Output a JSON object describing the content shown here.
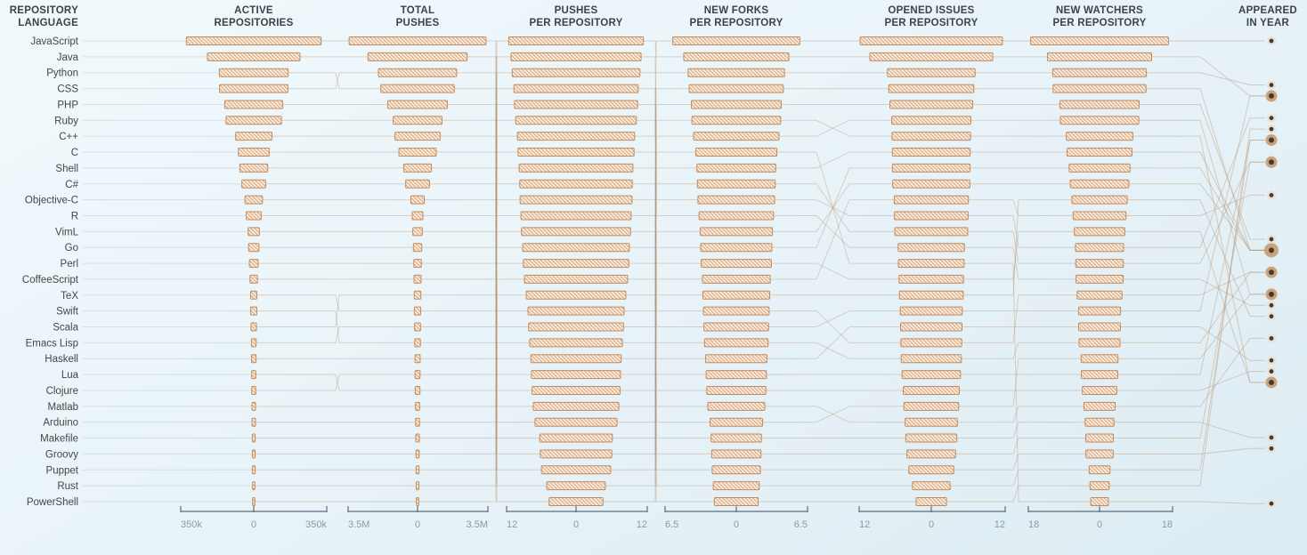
{
  "title_column": {
    "line1": "REPOSITORY",
    "line2": "LANGUAGE"
  },
  "columns": [
    {
      "id": "active_repositories",
      "title1": "ACTIVE",
      "title2": "REPOSITORIES",
      "ticks": [
        "350k",
        "0",
        "350k"
      ],
      "axis_max": 350000
    },
    {
      "id": "total_pushes",
      "title1": "TOTAL",
      "title2": "PUSHES",
      "ticks": [
        "3.5M",
        "0",
        "3.5M"
      ],
      "axis_max": 3500000
    },
    {
      "id": "pushes_per_repository",
      "title1": "PUSHES",
      "title2": "PER REPOSITORY",
      "ticks": [
        "12",
        "0",
        "12"
      ],
      "axis_max": 12
    },
    {
      "id": "new_forks_per_repository",
      "title1": "NEW FORKS",
      "title2": "PER REPOSITORY",
      "ticks": [
        "6.5",
        "0",
        "6.5"
      ],
      "axis_max": 6.5
    },
    {
      "id": "opened_issues_per_repository",
      "title1": "OPENED ISSUES",
      "title2": "PER REPOSITORY",
      "ticks": [
        "12",
        "0",
        "12"
      ],
      "axis_max": 12
    },
    {
      "id": "new_watchers_per_repository",
      "title1": "NEW WATCHERS",
      "title2": "PER REPOSITORY",
      "ticks": [
        "18",
        "0",
        "18"
      ],
      "axis_max": 18
    }
  ],
  "year_column": {
    "title1": "APPEARED",
    "title2": "IN YEAR",
    "top_year": 2014,
    "bottom_year": 1972
  },
  "languages": [
    {
      "name": "JavaScript",
      "active_repositories": 323000,
      "total_pushes": 3450000,
      "pushes_per_repository": 5.0,
      "new_forks_per_repository": 4.3,
      "opened_issues_per_repository": 7.0,
      "new_watchers_per_repository": 11.6,
      "appeared_in_year": 1995
    },
    {
      "name": "Java",
      "active_repositories": 222000,
      "total_pushes": 2500000,
      "pushes_per_repository": 6.1,
      "new_forks_per_repository": 3.6,
      "opened_issues_per_repository": 6.4,
      "new_watchers_per_repository": 8.1,
      "appeared_in_year": 1995
    },
    {
      "name": "Python",
      "active_repositories": 165000,
      "total_pushes": 1850000,
      "pushes_per_repository": 7.0,
      "new_forks_per_repository": 3.9,
      "opened_issues_per_repository": 6.5,
      "new_watchers_per_repository": 9.8,
      "appeared_in_year": 1991
    },
    {
      "name": "CSS",
      "active_repositories": 164000,
      "total_pushes": 1970000,
      "pushes_per_repository": 4.6,
      "new_forks_per_repository": 4.1,
      "opened_issues_per_repository": 6.8,
      "new_watchers_per_repository": 9.9,
      "appeared_in_year": 1996
    },
    {
      "name": "PHP",
      "active_repositories": 139000,
      "total_pushes": 1500000,
      "pushes_per_repository": 5.9,
      "new_forks_per_repository": 3.25,
      "opened_issues_per_repository": 6.38,
      "new_watchers_per_repository": 7.6,
      "appeared_in_year": 1995
    },
    {
      "name": "Ruby",
      "active_repositories": 133000,
      "total_pushes": 1230000,
      "pushes_per_repository": 6.2,
      "new_forks_per_repository": 3.3,
      "opened_issues_per_repository": 6.35,
      "new_watchers_per_repository": 7.3,
      "appeared_in_year": 1995
    },
    {
      "name": "C++",
      "active_repositories": 87000,
      "total_pushes": 1140000,
      "pushes_per_repository": 8.1,
      "new_forks_per_repository": 4.05,
      "opened_issues_per_repository": 6.45,
      "new_watchers_per_repository": 8.3,
      "appeared_in_year": 1983
    },
    {
      "name": "C",
      "active_repositories": 74000,
      "total_pushes": 940000,
      "pushes_per_repository": 8.2,
      "new_forks_per_repository": 3.7,
      "opened_issues_per_repository": 5.4,
      "new_watchers_per_repository": 2.2,
      "appeared_in_year": 1972
    },
    {
      "name": "Shell",
      "active_repositories": 67000,
      "total_pushes": 700000,
      "pushes_per_repository": 7.6,
      "new_forks_per_repository": 3.05,
      "opened_issues_per_repository": 5.25,
      "new_watchers_per_repository": 6.9,
      "appeared_in_year": 1989
    },
    {
      "name": "C#",
      "active_repositories": 57000,
      "total_pushes": 600000,
      "pushes_per_repository": 7.5,
      "new_forks_per_repository": 3.1,
      "opened_issues_per_repository": 6.1,
      "new_watchers_per_repository": 6.6,
      "appeared_in_year": 2000
    },
    {
      "name": "Objective-C",
      "active_repositories": 42000,
      "total_pushes": 340000,
      "pushes_per_repository": 7.3,
      "new_forks_per_repository": 3.2,
      "opened_issues_per_repository": 5.3,
      "new_watchers_per_repository": 6.3,
      "appeared_in_year": 1983
    },
    {
      "name": "R",
      "active_repositories": 36000,
      "total_pushes": 270000,
      "pushes_per_repository": 9.55,
      "new_forks_per_repository": 2.9,
      "opened_issues_per_repository": 4.95,
      "new_watchers_per_repository": 5.1,
      "appeared_in_year": 1993
    },
    {
      "name": "VimL",
      "active_repositories": 27000,
      "total_pushes": 240000,
      "pushes_per_repository": 9.1,
      "new_forks_per_repository": 2.4,
      "opened_issues_per_repository": 4.5,
      "new_watchers_per_repository": 4.6,
      "appeared_in_year": 1991
    },
    {
      "name": "Go",
      "active_repositories": 25000,
      "total_pushes": 210000,
      "pushes_per_repository": 11.5,
      "new_forks_per_repository": 4.8,
      "opened_issues_per_repository": 10.1,
      "new_watchers_per_repository": 13.0,
      "appeared_in_year": 2009
    },
    {
      "name": "Perl",
      "active_repositories": 21000,
      "total_pushes": 190000,
      "pushes_per_repository": 9.4,
      "new_forks_per_repository": 2.6,
      "opened_issues_per_repository": 4.3,
      "new_watchers_per_repository": 3.9,
      "appeared_in_year": 1987
    },
    {
      "name": "CoffeeScript",
      "active_repositories": 18000,
      "total_pushes": 180000,
      "pushes_per_repository": 9.9,
      "new_forks_per_repository": 2.95,
      "opened_issues_per_repository": 5.1,
      "new_watchers_per_repository": 5.25,
      "appeared_in_year": 2009
    },
    {
      "name": "TeX",
      "active_repositories": 15000,
      "total_pushes": 160000,
      "pushes_per_repository": 9.3,
      "new_forks_per_repository": 2.3,
      "opened_issues_per_repository": 4.2,
      "new_watchers_per_repository": 3.6,
      "appeared_in_year": 1978
    },
    {
      "name": "Swift",
      "active_repositories": 14800,
      "total_pushes": 145000,
      "pushes_per_repository": 10.0,
      "new_forks_per_repository": 5.8,
      "opened_issues_per_repository": 11.7,
      "new_watchers_per_repository": 17.2,
      "appeared_in_year": 2014
    },
    {
      "name": "Scala",
      "active_repositories": 13000,
      "total_pushes": 165000,
      "pushes_per_repository": 11.1,
      "new_forks_per_repository": 3.55,
      "opened_issues_per_repository": 6.0,
      "new_watchers_per_repository": 5.95,
      "appeared_in_year": 2003
    },
    {
      "name": "Emacs Lisp",
      "active_repositories": 11500,
      "total_pushes": 150000,
      "pushes_per_repository": 10.6,
      "new_forks_per_repository": 2.8,
      "opened_issues_per_repository": 5.05,
      "new_watchers_per_repository": 5.2,
      "appeared_in_year": 1985
    },
    {
      "name": "Haskell",
      "active_repositories": 11000,
      "total_pushes": 130000,
      "pushes_per_repository": 10.5,
      "new_forks_per_repository": 3.4,
      "opened_issues_per_repository": 5.45,
      "new_watchers_per_repository": 5.9,
      "appeared_in_year": 1990
    },
    {
      "name": "Lua",
      "active_repositories": 10000,
      "total_pushes": 120000,
      "pushes_per_repository": 9.7,
      "new_forks_per_repository": 3.0,
      "opened_issues_per_repository": 5.0,
      "new_watchers_per_repository": 5.6,
      "appeared_in_year": 1993
    },
    {
      "name": "Clojure",
      "active_repositories": 9800,
      "total_pushes": 125000,
      "pushes_per_repository": 10.3,
      "new_forks_per_repository": 3.5,
      "opened_issues_per_repository": 6.05,
      "new_watchers_per_repository": 6.0,
      "appeared_in_year": 2007
    },
    {
      "name": "Matlab",
      "active_repositories": 8500,
      "total_pushes": 105000,
      "pushes_per_repository": 7.9,
      "new_forks_per_repository": 2.7,
      "opened_issues_per_repository": 4.6,
      "new_watchers_per_repository": 4.3,
      "appeared_in_year": 1984
    },
    {
      "name": "Arduino",
      "active_repositories": 8400,
      "total_pushes": 100000,
      "pushes_per_repository": 7.7,
      "new_forks_per_repository": 2.75,
      "opened_issues_per_repository": 4.8,
      "new_watchers_per_repository": 4.55,
      "appeared_in_year": 2005
    },
    {
      "name": "Makefile",
      "active_repositories": 7000,
      "total_pushes": 90000,
      "pushes_per_repository": 8.5,
      "new_forks_per_repository": 2.2,
      "opened_issues_per_repository": 3.7,
      "new_watchers_per_repository": 3.4,
      "appeared_in_year": 1977
    },
    {
      "name": "Groovy",
      "active_repositories": 6900,
      "total_pushes": 80000,
      "pushes_per_repository": 9.6,
      "new_forks_per_repository": 2.25,
      "opened_issues_per_repository": 4.0,
      "new_watchers_per_repository": 3.45,
      "appeared_in_year": 2003
    },
    {
      "name": "Puppet",
      "active_repositories": 6800,
      "total_pushes": 75000,
      "pushes_per_repository": 9.0,
      "new_forks_per_repository": 2.1,
      "opened_issues_per_repository": 3.1,
      "new_watchers_per_repository": 2.6,
      "appeared_in_year": 2005
    },
    {
      "name": "Rust",
      "active_repositories": 5600,
      "total_pushes": 70000,
      "pushes_per_repository": 10.9,
      "new_forks_per_repository": 4.4,
      "opened_issues_per_repository": 7.2,
      "new_watchers_per_repository": 11.7,
      "appeared_in_year": 2010
    },
    {
      "name": "PowerShell",
      "active_repositories": 5500,
      "total_pushes": 60000,
      "pushes_per_repository": 8.8,
      "new_forks_per_repository": 2.0,
      "opened_issues_per_repository": 2.5,
      "new_watchers_per_repository": 2.4,
      "appeared_in_year": 2006
    }
  ],
  "colors": {
    "bar_border": "#c08c5f",
    "bar_hatch": "#dfb18a",
    "bar_background": "#fbf6f0",
    "connector_line": "#bb9371",
    "guide_line": "#aab4ba",
    "axis_line": "#5d6d79",
    "tick_label": "#8d9aa6",
    "row_label": "#454545",
    "header_text": "#3d4349",
    "dot_core": "#453a2f",
    "dot_ring_single": "#e9ded4",
    "dot_ring_multi": "#c79e73"
  },
  "chart_data": {
    "type": "bar",
    "title": "Repository language statistics (ranked parallel bar columns)",
    "categories": [
      "JavaScript",
      "Java",
      "Python",
      "CSS",
      "PHP",
      "Ruby",
      "C++",
      "C",
      "Shell",
      "C#",
      "Objective-C",
      "R",
      "VimL",
      "Go",
      "Perl",
      "CoffeeScript",
      "TeX",
      "Swift",
      "Scala",
      "Emacs Lisp",
      "Haskell",
      "Lua",
      "Clojure",
      "Matlab",
      "Arduino",
      "Makefile",
      "Groovy",
      "Puppet",
      "Rust",
      "PowerShell"
    ],
    "series": [
      {
        "name": "Active Repositories",
        "axis_max": 350000,
        "values": [
          323000,
          222000,
          165000,
          164000,
          139000,
          133000,
          87000,
          74000,
          67000,
          57000,
          42000,
          36000,
          27000,
          25000,
          21000,
          18000,
          15000,
          14800,
          13000,
          11500,
          11000,
          10000,
          9800,
          8500,
          8400,
          7000,
          6900,
          6800,
          5600,
          5500
        ]
      },
      {
        "name": "Total Pushes",
        "axis_max": 3500000,
        "values": [
          3450000,
          2500000,
          1850000,
          1970000,
          1500000,
          1230000,
          1140000,
          940000,
          700000,
          600000,
          340000,
          270000,
          240000,
          210000,
          190000,
          180000,
          160000,
          145000,
          165000,
          150000,
          130000,
          120000,
          125000,
          105000,
          100000,
          90000,
          80000,
          75000,
          70000,
          60000
        ]
      },
      {
        "name": "Pushes per Repository",
        "axis_max": 12,
        "values": [
          5.0,
          6.1,
          7.0,
          4.6,
          5.9,
          6.2,
          8.1,
          8.2,
          7.6,
          7.5,
          7.3,
          9.55,
          9.1,
          11.5,
          9.4,
          9.9,
          9.3,
          10.0,
          11.1,
          10.6,
          10.5,
          9.7,
          10.3,
          7.9,
          7.7,
          8.5,
          9.6,
          9.0,
          10.9,
          8.8
        ]
      },
      {
        "name": "New Forks per Repository",
        "axis_max": 6.5,
        "values": [
          4.3,
          3.6,
          3.9,
          4.1,
          3.25,
          3.3,
          4.05,
          3.7,
          3.05,
          3.1,
          3.2,
          2.9,
          2.4,
          4.8,
          2.6,
          2.95,
          2.3,
          5.8,
          3.55,
          2.8,
          3.4,
          3.0,
          3.5,
          2.7,
          2.75,
          2.2,
          2.25,
          2.1,
          4.4,
          2.0
        ]
      },
      {
        "name": "Opened Issues per Repository",
        "axis_max": 12,
        "values": [
          7.0,
          6.4,
          6.5,
          6.8,
          6.38,
          6.35,
          6.45,
          5.4,
          5.25,
          6.1,
          5.3,
          4.95,
          4.5,
          10.1,
          4.3,
          5.1,
          4.2,
          11.7,
          6.0,
          5.05,
          5.45,
          5.0,
          6.05,
          4.6,
          4.8,
          3.7,
          4.0,
          3.1,
          7.2,
          2.5
        ]
      },
      {
        "name": "New Watchers per Repository",
        "axis_max": 18,
        "values": [
          11.6,
          8.1,
          9.8,
          9.9,
          7.6,
          7.3,
          8.3,
          2.2,
          6.9,
          6.6,
          6.3,
          5.1,
          4.6,
          13.0,
          3.9,
          5.25,
          3.6,
          17.2,
          5.95,
          5.2,
          5.9,
          5.6,
          6.0,
          4.3,
          4.55,
          3.4,
          3.45,
          2.6,
          11.7,
          2.4
        ]
      },
      {
        "name": "Appeared in Year",
        "values": [
          1995,
          1995,
          1991,
          1996,
          1995,
          1995,
          1983,
          1972,
          1989,
          2000,
          1983,
          1993,
          1991,
          2009,
          1987,
          2009,
          1978,
          2014,
          2003,
          1985,
          1990,
          1993,
          2007,
          1984,
          2005,
          1977,
          2003,
          2005,
          2010,
          2006
        ]
      }
    ],
    "layout_hints": {
      "each_column_sorted_descending": true,
      "diverging_axes_zero_centered": true,
      "year_axis": {
        "top": 2014,
        "bottom": 1972
      },
      "grid": false,
      "legend": "none"
    }
  }
}
